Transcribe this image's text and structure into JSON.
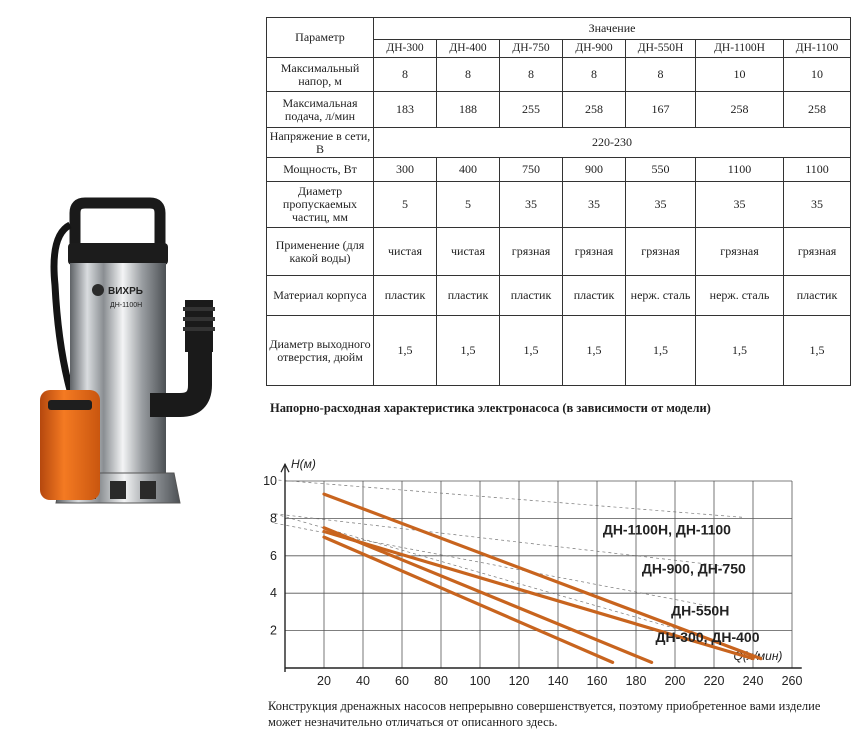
{
  "product": {
    "brand": "ВИХРЬ",
    "model_label": "ДН-1100Н"
  },
  "table": {
    "param_header": "Параметр",
    "value_header": "Значение",
    "models": [
      "ДН-300",
      "ДН-400",
      "ДН-750",
      "ДН-900",
      "ДН-550Н",
      "ДН-1100Н",
      "ДН-1100"
    ],
    "rows": [
      {
        "label": "Максимальный напор, м",
        "values": [
          "8",
          "8",
          "8",
          "8",
          "8",
          "10",
          "10"
        ]
      },
      {
        "label": "Максимальная подача, л/мин",
        "values": [
          "183",
          "188",
          "255",
          "258",
          "167",
          "258",
          "258"
        ]
      },
      {
        "label": "Напряжение в сети, В",
        "merged": "220-230"
      },
      {
        "label": "Мощность, Вт",
        "values": [
          "300",
          "400",
          "750",
          "900",
          "550",
          "1100",
          "1100"
        ]
      },
      {
        "label": "Диаметр пропускаемых частиц, мм",
        "values": [
          "5",
          "5",
          "35",
          "35",
          "35",
          "35",
          "35"
        ]
      },
      {
        "label": "Применение (для какой воды)",
        "values": [
          "чистая",
          "чистая",
          "грязная",
          "грязная",
          "грязная",
          "грязная",
          "грязная"
        ]
      },
      {
        "label": "Материал корпуса",
        "values": [
          "пластик",
          "пластик",
          "пластик",
          "пластик",
          "нерж. сталь",
          "нерж. сталь",
          "пластик"
        ]
      },
      {
        "label": "Диаметр выходного отверстия, дюйм",
        "values": [
          "1,5",
          "1,5",
          "1,5",
          "1,5",
          "1,5",
          "1,5",
          "1,5"
        ]
      }
    ]
  },
  "chart_title": "Напорно-расходная характеристика электронасоса (в зависимости от модели)",
  "chart_data": {
    "type": "line",
    "ylabel": "H(м)",
    "xlabel": "Q(л/мин)",
    "xlim": [
      0,
      260
    ],
    "ylim": [
      0,
      10
    ],
    "x_ticks": [
      20,
      40,
      60,
      80,
      100,
      120,
      140,
      160,
      180,
      200,
      220,
      240,
      260
    ],
    "y_ticks": [
      2,
      4,
      6,
      8,
      10
    ],
    "grid": true,
    "line_color": "#c8641e",
    "series": [
      {
        "name": "ДН-1100Н, ДН-1100",
        "x": [
          20,
          244
        ],
        "y": [
          9.3,
          0.5
        ]
      },
      {
        "name": "ДН-900, ДН-750",
        "x": [
          20,
          240
        ],
        "y": [
          7.3,
          0.5
        ]
      },
      {
        "name": "ДН-550Н",
        "x": [
          20,
          168
        ],
        "y": [
          7.0,
          0.3
        ]
      },
      {
        "name": "ДН-300, ДН-400",
        "x": [
          20,
          188
        ],
        "y": [
          7.5,
          0.3
        ]
      }
    ]
  },
  "footnote": "Конструкция дренажных насосов непрерывно совершенствуется, поэтому приобретенное вами изделие может незначительно отличаться от описанного здесь."
}
